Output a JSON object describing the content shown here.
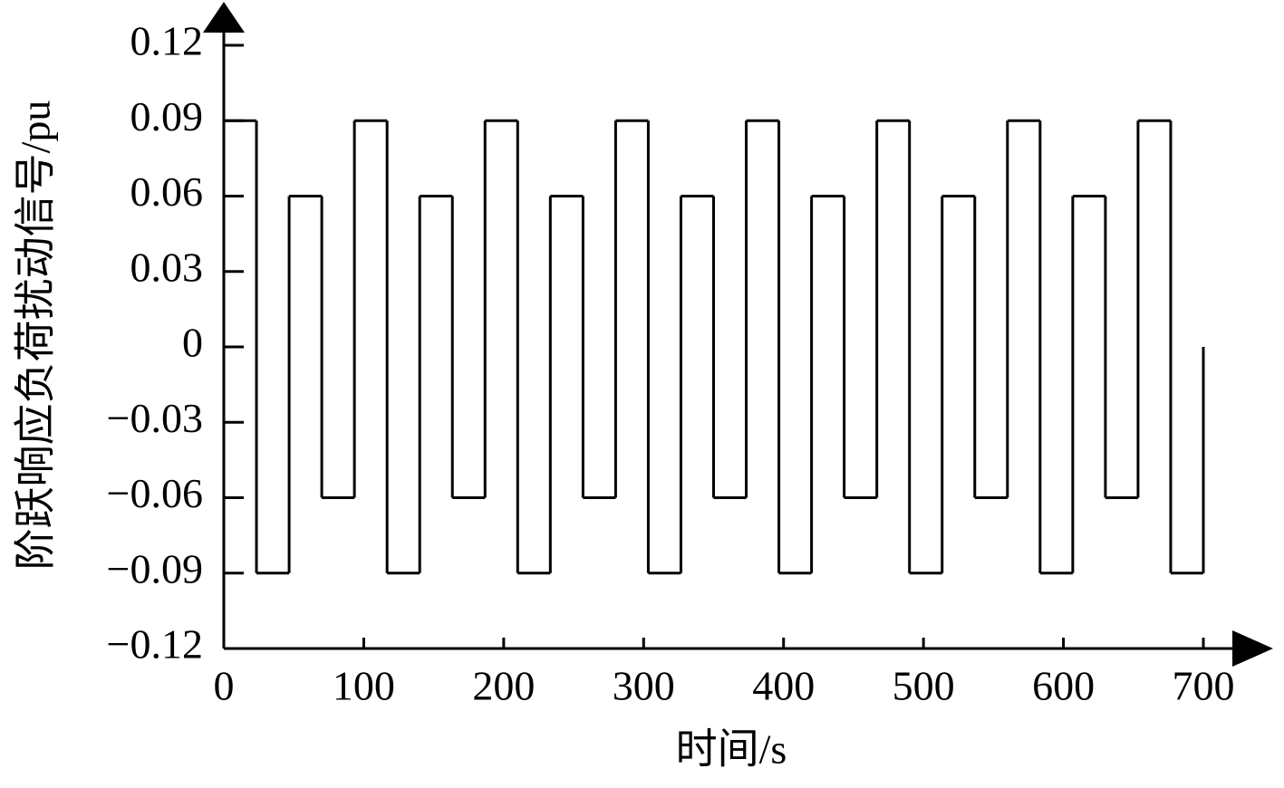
{
  "chart_data": {
    "type": "step",
    "xlabel": "时间/s",
    "ylabel": "阶跃响应负荷扰动信号/pu",
    "x": [
      0,
      23.33,
      46.67,
      70,
      93.33,
      116.67,
      140,
      163.33,
      186.67,
      210,
      233.33,
      256.67,
      280,
      303.33,
      326.67,
      350,
      373.33,
      396.67,
      420,
      443.33,
      466.67,
      490,
      513.33,
      536.67,
      560,
      583.33,
      606.67,
      630,
      653.33,
      676.67,
      700
    ],
    "series": [
      {
        "color": "#000000",
        "values": [
          0.09,
          -0.09,
          0.06,
          -0.06,
          0.09,
          -0.09,
          0.06,
          -0.06,
          0.09,
          -0.09,
          0.06,
          -0.06,
          0.09,
          -0.09,
          0.06,
          -0.06,
          0.09,
          -0.09,
          0.06,
          -0.06,
          0.09,
          -0.09,
          0.06,
          -0.06,
          0.09,
          -0.09,
          0.06,
          -0.06,
          0.09,
          -0.09,
          0
        ]
      }
    ],
    "xlim": [
      0,
      700
    ],
    "xticks": [
      0,
      100,
      200,
      300,
      400,
      500,
      600,
      700
    ],
    "ylim": [
      -0.12,
      0.12
    ],
    "yticks": [
      {
        "value": -0.12,
        "label": "−0.12"
      },
      {
        "value": -0.09,
        "label": "−0.09"
      },
      {
        "value": -0.06,
        "label": "−0.06"
      },
      {
        "value": -0.03,
        "label": "−0.03"
      },
      0,
      0.03,
      0.06,
      0.09,
      0.12
    ]
  }
}
